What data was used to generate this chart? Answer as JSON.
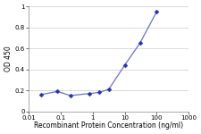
{
  "x": [
    0.025,
    0.08,
    0.2,
    0.8,
    1.6,
    3.2,
    10,
    30,
    100
  ],
  "y": [
    0.16,
    0.19,
    0.15,
    0.17,
    0.18,
    0.21,
    0.44,
    0.65,
    0.95
  ],
  "line_color": "#6674C4",
  "marker_color": "#2233AA",
  "xlabel": "Recombinant Protein Concentration (ng/ml)",
  "ylabel": "OD 450",
  "xlim": [
    0.01,
    1000
  ],
  "ylim": [
    0,
    1.0
  ],
  "yticks": [
    0,
    0.2,
    0.4,
    0.6,
    0.8,
    1
  ],
  "xticks": [
    0.01,
    0.1,
    1,
    10,
    100,
    1000
  ],
  "xtick_labels": [
    "0.01",
    "0.1",
    "1",
    "10",
    "100",
    "1000"
  ],
  "plot_bg": "#ffffff",
  "fig_bg": "#ffffff",
  "grid_color": "#cccccc",
  "axis_fontsize": 5.5,
  "tick_fontsize": 5.0,
  "ylabel_fontsize": 5.5,
  "marker_size": 2.5,
  "line_width": 0.9
}
